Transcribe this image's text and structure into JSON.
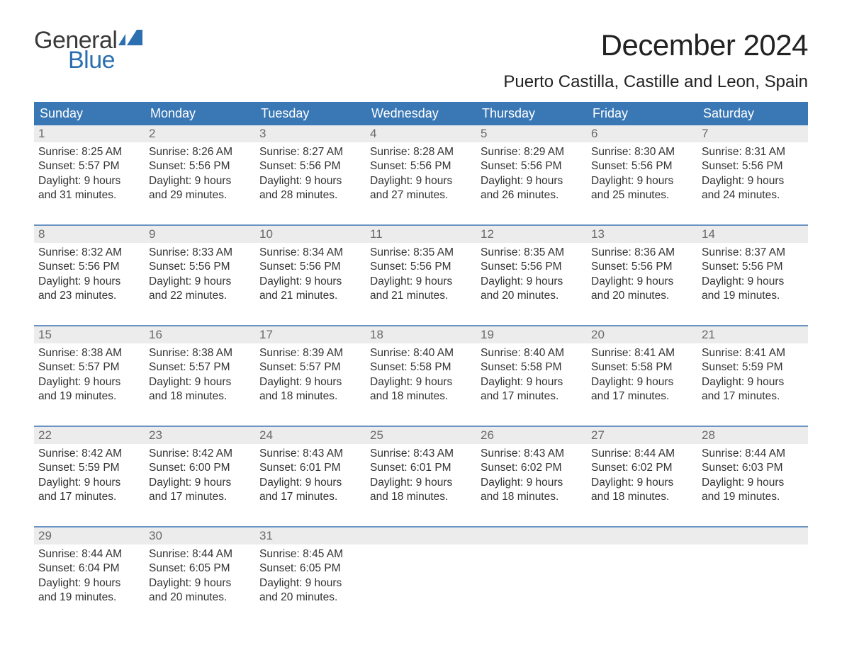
{
  "brand": {
    "word1": "General",
    "word2": "Blue",
    "flag_color": "#2b6fb0"
  },
  "title": "December 2024",
  "location": "Puerto Castilla, Castille and Leon, Spain",
  "colors": {
    "header_bg": "#3a78b5",
    "header_text": "#ffffff",
    "row_border": "#6a93c4",
    "daynum_bg": "#ececec",
    "daynum_text": "#6a6a6a",
    "body_text": "#333333",
    "background": "#ffffff"
  },
  "typography": {
    "title_fontsize": 42,
    "location_fontsize": 24,
    "header_fontsize": 18,
    "daynum_fontsize": 17,
    "body_fontsize": 15.5
  },
  "day_names": [
    "Sunday",
    "Monday",
    "Tuesday",
    "Wednesday",
    "Thursday",
    "Friday",
    "Saturday"
  ],
  "weeks": [
    [
      {
        "n": "1",
        "sr": "Sunrise: 8:25 AM",
        "ss": "Sunset: 5:57 PM",
        "d1": "Daylight: 9 hours",
        "d2": "and 31 minutes."
      },
      {
        "n": "2",
        "sr": "Sunrise: 8:26 AM",
        "ss": "Sunset: 5:56 PM",
        "d1": "Daylight: 9 hours",
        "d2": "and 29 minutes."
      },
      {
        "n": "3",
        "sr": "Sunrise: 8:27 AM",
        "ss": "Sunset: 5:56 PM",
        "d1": "Daylight: 9 hours",
        "d2": "and 28 minutes."
      },
      {
        "n": "4",
        "sr": "Sunrise: 8:28 AM",
        "ss": "Sunset: 5:56 PM",
        "d1": "Daylight: 9 hours",
        "d2": "and 27 minutes."
      },
      {
        "n": "5",
        "sr": "Sunrise: 8:29 AM",
        "ss": "Sunset: 5:56 PM",
        "d1": "Daylight: 9 hours",
        "d2": "and 26 minutes."
      },
      {
        "n": "6",
        "sr": "Sunrise: 8:30 AM",
        "ss": "Sunset: 5:56 PM",
        "d1": "Daylight: 9 hours",
        "d2": "and 25 minutes."
      },
      {
        "n": "7",
        "sr": "Sunrise: 8:31 AM",
        "ss": "Sunset: 5:56 PM",
        "d1": "Daylight: 9 hours",
        "d2": "and 24 minutes."
      }
    ],
    [
      {
        "n": "8",
        "sr": "Sunrise: 8:32 AM",
        "ss": "Sunset: 5:56 PM",
        "d1": "Daylight: 9 hours",
        "d2": "and 23 minutes."
      },
      {
        "n": "9",
        "sr": "Sunrise: 8:33 AM",
        "ss": "Sunset: 5:56 PM",
        "d1": "Daylight: 9 hours",
        "d2": "and 22 minutes."
      },
      {
        "n": "10",
        "sr": "Sunrise: 8:34 AM",
        "ss": "Sunset: 5:56 PM",
        "d1": "Daylight: 9 hours",
        "d2": "and 21 minutes."
      },
      {
        "n": "11",
        "sr": "Sunrise: 8:35 AM",
        "ss": "Sunset: 5:56 PM",
        "d1": "Daylight: 9 hours",
        "d2": "and 21 minutes."
      },
      {
        "n": "12",
        "sr": "Sunrise: 8:35 AM",
        "ss": "Sunset: 5:56 PM",
        "d1": "Daylight: 9 hours",
        "d2": "and 20 minutes."
      },
      {
        "n": "13",
        "sr": "Sunrise: 8:36 AM",
        "ss": "Sunset: 5:56 PM",
        "d1": "Daylight: 9 hours",
        "d2": "and 20 minutes."
      },
      {
        "n": "14",
        "sr": "Sunrise: 8:37 AM",
        "ss": "Sunset: 5:56 PM",
        "d1": "Daylight: 9 hours",
        "d2": "and 19 minutes."
      }
    ],
    [
      {
        "n": "15",
        "sr": "Sunrise: 8:38 AM",
        "ss": "Sunset: 5:57 PM",
        "d1": "Daylight: 9 hours",
        "d2": "and 19 minutes."
      },
      {
        "n": "16",
        "sr": "Sunrise: 8:38 AM",
        "ss": "Sunset: 5:57 PM",
        "d1": "Daylight: 9 hours",
        "d2": "and 18 minutes."
      },
      {
        "n": "17",
        "sr": "Sunrise: 8:39 AM",
        "ss": "Sunset: 5:57 PM",
        "d1": "Daylight: 9 hours",
        "d2": "and 18 minutes."
      },
      {
        "n": "18",
        "sr": "Sunrise: 8:40 AM",
        "ss": "Sunset: 5:58 PM",
        "d1": "Daylight: 9 hours",
        "d2": "and 18 minutes."
      },
      {
        "n": "19",
        "sr": "Sunrise: 8:40 AM",
        "ss": "Sunset: 5:58 PM",
        "d1": "Daylight: 9 hours",
        "d2": "and 17 minutes."
      },
      {
        "n": "20",
        "sr": "Sunrise: 8:41 AM",
        "ss": "Sunset: 5:58 PM",
        "d1": "Daylight: 9 hours",
        "d2": "and 17 minutes."
      },
      {
        "n": "21",
        "sr": "Sunrise: 8:41 AM",
        "ss": "Sunset: 5:59 PM",
        "d1": "Daylight: 9 hours",
        "d2": "and 17 minutes."
      }
    ],
    [
      {
        "n": "22",
        "sr": "Sunrise: 8:42 AM",
        "ss": "Sunset: 5:59 PM",
        "d1": "Daylight: 9 hours",
        "d2": "and 17 minutes."
      },
      {
        "n": "23",
        "sr": "Sunrise: 8:42 AM",
        "ss": "Sunset: 6:00 PM",
        "d1": "Daylight: 9 hours",
        "d2": "and 17 minutes."
      },
      {
        "n": "24",
        "sr": "Sunrise: 8:43 AM",
        "ss": "Sunset: 6:01 PM",
        "d1": "Daylight: 9 hours",
        "d2": "and 17 minutes."
      },
      {
        "n": "25",
        "sr": "Sunrise: 8:43 AM",
        "ss": "Sunset: 6:01 PM",
        "d1": "Daylight: 9 hours",
        "d2": "and 18 minutes."
      },
      {
        "n": "26",
        "sr": "Sunrise: 8:43 AM",
        "ss": "Sunset: 6:02 PM",
        "d1": "Daylight: 9 hours",
        "d2": "and 18 minutes."
      },
      {
        "n": "27",
        "sr": "Sunrise: 8:44 AM",
        "ss": "Sunset: 6:02 PM",
        "d1": "Daylight: 9 hours",
        "d2": "and 18 minutes."
      },
      {
        "n": "28",
        "sr": "Sunrise: 8:44 AM",
        "ss": "Sunset: 6:03 PM",
        "d1": "Daylight: 9 hours",
        "d2": "and 19 minutes."
      }
    ],
    [
      {
        "n": "29",
        "sr": "Sunrise: 8:44 AM",
        "ss": "Sunset: 6:04 PM",
        "d1": "Daylight: 9 hours",
        "d2": "and 19 minutes."
      },
      {
        "n": "30",
        "sr": "Sunrise: 8:44 AM",
        "ss": "Sunset: 6:05 PM",
        "d1": "Daylight: 9 hours",
        "d2": "and 20 minutes."
      },
      {
        "n": "31",
        "sr": "Sunrise: 8:45 AM",
        "ss": "Sunset: 6:05 PM",
        "d1": "Daylight: 9 hours",
        "d2": "and 20 minutes."
      },
      null,
      null,
      null,
      null
    ]
  ]
}
